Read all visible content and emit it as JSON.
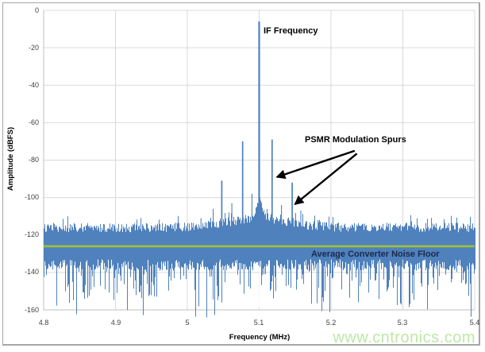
{
  "watermark": {
    "text": "www.cntronics.com",
    "color": "#BDE8A6"
  },
  "chart_data": {
    "type": "line",
    "title": "",
    "xlabel": "Frequency (MHz)",
    "ylabel": "Amplitude (dBFS)",
    "xlim": [
      4.8,
      5.4
    ],
    "ylim": [
      -160,
      0
    ],
    "x_ticks": [
      "4.8",
      "4.9",
      "5",
      "5.1",
      "5.2",
      "5.3",
      "5.4"
    ],
    "x_tick_values": [
      4.8,
      4.9,
      5.0,
      5.1,
      5.2,
      5.3,
      5.4
    ],
    "y_ticks": [
      "0",
      "-20",
      "-40",
      "-60",
      "-80",
      "-100",
      "-120",
      "-140",
      "-160"
    ],
    "y_tick_values": [
      0,
      -20,
      -40,
      -60,
      -80,
      -100,
      -120,
      -140,
      -160
    ],
    "grid": true,
    "legend": "none",
    "colors": {
      "series_blue": "#4F81BD",
      "noise_floor_green": "#A2C037",
      "gridline_gray": "#D9D9D9",
      "axis_gray": "#BFBFBF",
      "annotation_black": "#000000",
      "noise_floor_label_navy": "#1B2A4A",
      "tick_label_gray": "#404040"
    },
    "main_peak": {
      "freq": 5.1,
      "amplitude_dbfs": -6,
      "label": "IF Frequency"
    },
    "spurs": {
      "label": "PSMR Modulation Spurs",
      "points": [
        {
          "freq": 5.048,
          "amplitude_dbfs": -91
        },
        {
          "freq": 5.077,
          "amplitude_dbfs": -70
        },
        {
          "freq": 5.118,
          "amplitude_dbfs": -69
        },
        {
          "freq": 5.146,
          "amplitude_dbfs": -92
        }
      ],
      "arrows": [
        {
          "from": {
            "freq": 5.233,
            "dbfs": -75.0
          },
          "to": {
            "freq": 5.125,
            "dbfs": -89.0
          }
        },
        {
          "from": {
            "freq": 5.236,
            "dbfs": -76.5
          },
          "to": {
            "freq": 5.15,
            "dbfs": -103.5
          }
        }
      ]
    },
    "minor_spurs": [
      {
        "freq": 5.019,
        "amplitude_dbfs": -111
      },
      {
        "freq": 5.036,
        "amplitude_dbfs": -106
      },
      {
        "freq": 5.062,
        "amplitude_dbfs": -103
      },
      {
        "freq": 5.09,
        "amplitude_dbfs": -98
      },
      {
        "freq": 5.131,
        "amplitude_dbfs": -104
      },
      {
        "freq": 5.158,
        "amplitude_dbfs": -107
      },
      {
        "freq": 5.182,
        "amplitude_dbfs": -112
      }
    ],
    "pedestal": {
      "center_mhz": 5.1,
      "half_width_mhz": 0.014,
      "top_dbfs": -99
    },
    "noise": {
      "mean_dbfs": -126,
      "band_top_dbfs": -115,
      "band_bottom_dbfs": -137,
      "spike_floor_dbfs": -160,
      "center_elevation_db": 5
    },
    "noise_floor_line": {
      "value_dbfs": -126,
      "label": "Average Converter Noise Floor"
    }
  }
}
